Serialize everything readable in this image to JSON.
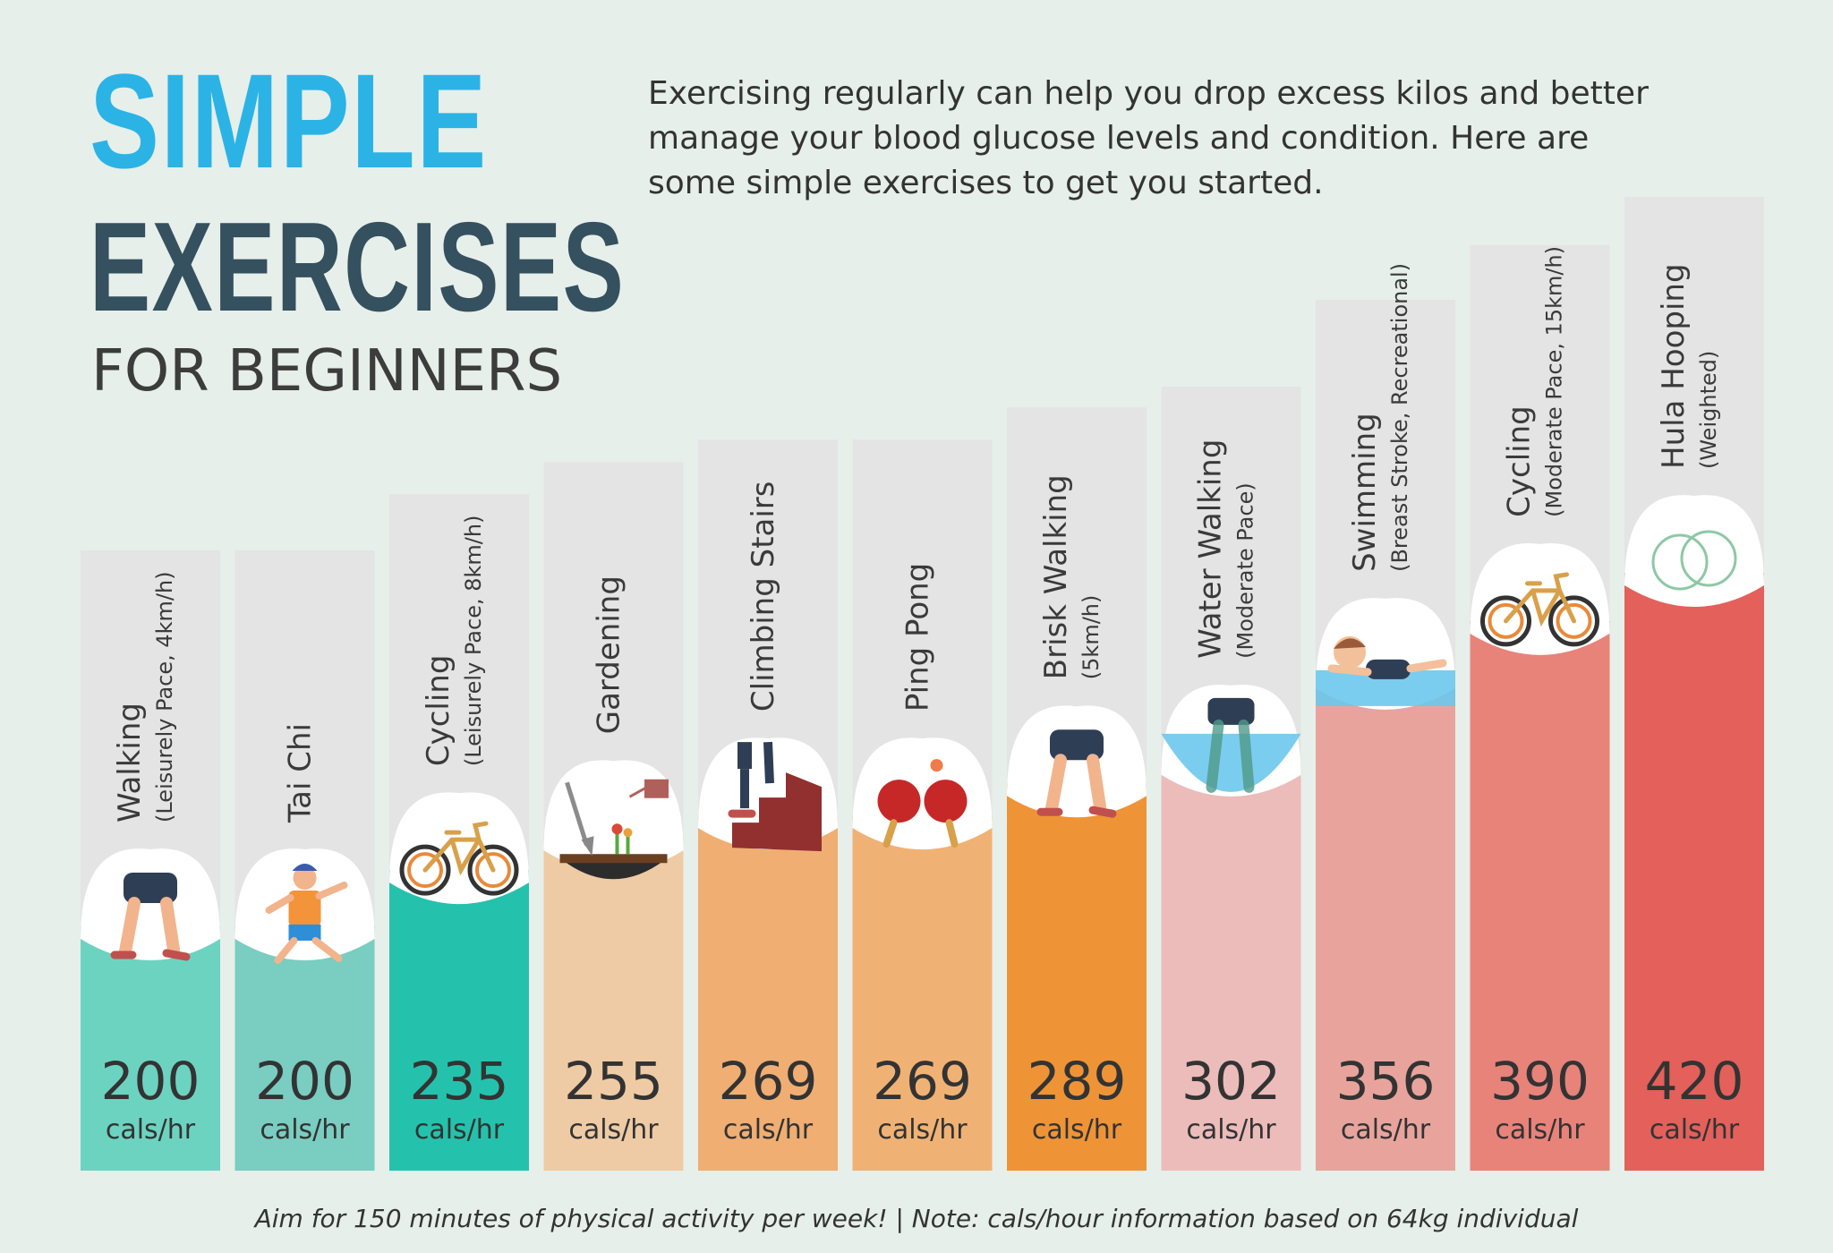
{
  "header": {
    "title_line1": "SIMPLE",
    "title_line2": "EXERCISES",
    "title_line3": "FOR BEGINNERS",
    "intro": "Exercising regularly can help you drop excess kilos and better manage your blood glucose levels and condition. Here are some simple exercises to get you started."
  },
  "footer": {
    "note": "Aim for 150 minutes of physical activity per week! | Note: cals/hour information based on 64kg individual"
  },
  "colors": {
    "title_blue": "#2bb3e6",
    "title_dark": "#35505e",
    "bar_background": "#e4e4e4"
  },
  "chart_data": {
    "type": "bar",
    "title": "",
    "ylabel": "",
    "unit": "cals/hr",
    "ylim": [
      0,
      420
    ],
    "categories": [
      {
        "name": "Walking",
        "detail": "(Leisurely Pace, 4km/h)",
        "value": 200,
        "unit": "cals/hr",
        "color": "#6dd3c1",
        "icon": "walking-legs-icon"
      },
      {
        "name": "Tai Chi",
        "detail": "",
        "value": 200,
        "unit": "cals/hr",
        "color": "#79cdc1",
        "icon": "tai-chi-person-icon"
      },
      {
        "name": "Cycling",
        "detail": "(Leisurely Pace, 8km/h)",
        "value": 235,
        "unit": "cals/hr",
        "color": "#24c2ac",
        "icon": "bicycle-icon"
      },
      {
        "name": "Gardening",
        "detail": "",
        "value": 255,
        "unit": "cals/hr",
        "color": "#eecba4",
        "icon": "shovel-watering-can-icon"
      },
      {
        "name": "Climbing Stairs",
        "detail": "",
        "value": 269,
        "unit": "cals/hr",
        "color": "#f0ae72",
        "icon": "stairs-icon"
      },
      {
        "name": "Ping Pong",
        "detail": "",
        "value": 269,
        "unit": "cals/hr",
        "color": "#f0b274",
        "icon": "ping-pong-paddles-icon"
      },
      {
        "name": "Brisk Walking",
        "detail": "(5km/h)",
        "value": 289,
        "unit": "cals/hr",
        "color": "#ee9436",
        "icon": "brisk-walking-legs-icon"
      },
      {
        "name": "Water Walking",
        "detail": "(Moderate Pace)",
        "value": 302,
        "unit": "cals/hr",
        "color": "#ecbcba",
        "icon": "water-walking-icon"
      },
      {
        "name": "Swimming",
        "detail": "(Breast Stroke, Recreational)",
        "value": 356,
        "unit": "cals/hr",
        "color": "#e8a49c",
        "icon": "swimmer-icon"
      },
      {
        "name": "Cycling",
        "detail": "(Moderate Pace, 15km/h)",
        "value": 390,
        "unit": "cals/hr",
        "color": "#e8837a",
        "icon": "bicycle-icon"
      },
      {
        "name": "Hula Hooping",
        "detail": "(Weighted)",
        "value": 420,
        "unit": "cals/hr",
        "color": "#e4605a",
        "icon": "hula-hoops-icon"
      }
    ]
  }
}
